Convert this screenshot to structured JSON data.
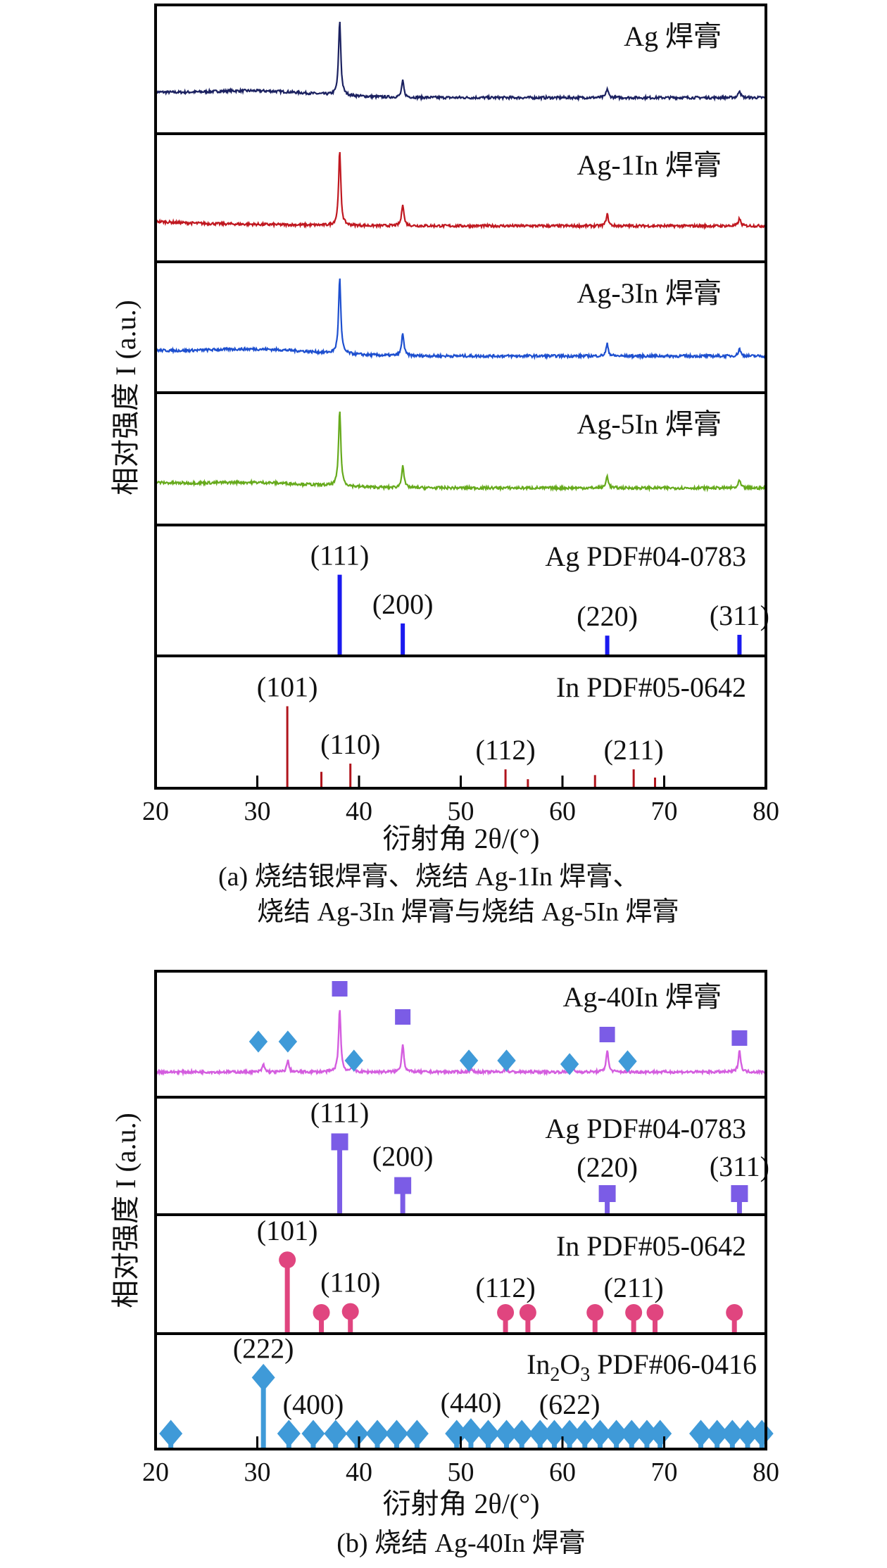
{
  "chart_data": [
    {
      "type": "line",
      "title": "(a) 烧结银焊膏、烧结 Ag-1In 焊膏、",
      "title_line2": "烧结 Ag-3In 焊膏与烧结 Ag-5In 焊膏",
      "xlabel": "衍射角 2θ/(°)",
      "ylabel": "相对强度 I (a.u.)",
      "xlim": [
        20,
        80
      ],
      "xticks": [
        "20",
        "30",
        "40",
        "50",
        "60",
        "70",
        "80"
      ],
      "series": [
        {
          "name": "Ag 焊膏",
          "color": "#1b2160",
          "peaks": [
            [
              38.1,
              100
            ],
            [
              44.3,
              22
            ],
            [
              64.4,
              12
            ],
            [
              77.4,
              10
            ]
          ],
          "hump": 8
        },
        {
          "name": "Ag-1In 焊膏",
          "color": "#c01820",
          "peaks": [
            [
              38.1,
              100
            ],
            [
              44.3,
              30
            ],
            [
              64.4,
              16
            ],
            [
              77.4,
              10
            ]
          ],
          "hump": 1
        },
        {
          "name": "Ag-3In 焊膏",
          "color": "#1d4fcf",
          "peaks": [
            [
              38.1,
              100
            ],
            [
              44.3,
              30
            ],
            [
              64.4,
              16
            ],
            [
              77.4,
              10
            ]
          ],
          "hump": 8
        },
        {
          "name": "Ag-5In 焊膏",
          "color": "#66aa1c",
          "peaks": [
            [
              38.1,
              100
            ],
            [
              44.3,
              30
            ],
            [
              64.4,
              16
            ],
            [
              77.4,
              10
            ]
          ],
          "hump": 6
        }
      ],
      "references": [
        {
          "name": "Ag PDF#04-0783",
          "color": "#1a1aef",
          "sticks": [
            [
              38.1,
              100
            ],
            [
              44.3,
              40
            ],
            [
              64.4,
              25
            ],
            [
              77.4,
              26
            ]
          ],
          "labels": [
            {
              "hkl": "(111)",
              "x": 38.1
            },
            {
              "hkl": "(200)",
              "x": 44.3
            },
            {
              "hkl": "(220)",
              "x": 64.4
            },
            {
              "hkl": "(311)",
              "x": 77.4
            }
          ]
        },
        {
          "name": "In PDF#05-0642",
          "color": "#b0141c",
          "sticks": [
            [
              32.95,
              100
            ],
            [
              36.3,
              20
            ],
            [
              39.15,
              30
            ],
            [
              54.4,
              23
            ],
            [
              56.6,
              11
            ],
            [
              63.2,
              16
            ],
            [
              67.0,
              23
            ],
            [
              69.1,
              13
            ],
            [
              76.9,
              1
            ]
          ],
          "labels": [
            {
              "hkl": "(101)",
              "x": 32.95
            },
            {
              "hkl": "(110)",
              "x": 39.15
            },
            {
              "hkl": "(112)",
              "x": 54.4
            },
            {
              "hkl": "(211)",
              "x": 67.0
            }
          ]
        }
      ]
    },
    {
      "type": "line",
      "title": "(b) 烧结 Ag-40In 焊膏",
      "xlabel": "衍射角 2θ/(°)",
      "ylabel": "相对强度 I (a.u.)",
      "xlim": [
        20,
        80
      ],
      "xticks": [
        "20",
        "30",
        "40",
        "50",
        "60",
        "70",
        "80"
      ],
      "series": [
        {
          "name": "Ag-40In 焊膏",
          "color": "#d45ddf",
          "peaks": [
            [
              30.6,
              12
            ],
            [
              33.0,
              18
            ],
            [
              38.1,
              100
            ],
            [
              39.3,
              8
            ],
            [
              44.3,
              45
            ],
            [
              51.0,
              5
            ],
            [
              54.4,
              5
            ],
            [
              61.0,
              5
            ],
            [
              64.4,
              35
            ],
            [
              77.4,
              35
            ]
          ],
          "markers_Ag": [
            38.1,
            44.3,
            64.4,
            77.4
          ],
          "markers_In2O3": [
            30.1,
            33.0,
            39.5,
            50.8,
            54.5,
            60.7,
            66.4
          ]
        }
      ],
      "references": [
        {
          "name": "Ag PDF#04-0783",
          "color": "#7b5ce6",
          "marker": "square",
          "sticks": [
            [
              38.1,
              100
            ],
            [
              44.3,
              40
            ],
            [
              64.4,
              25
            ],
            [
              77.4,
              26
            ]
          ],
          "labels": [
            {
              "hkl": "(111)",
              "x": 38.1
            },
            {
              "hkl": "(200)",
              "x": 44.3
            },
            {
              "hkl": "(220)",
              "x": 64.4
            },
            {
              "hkl": "(311)",
              "x": 77.4
            }
          ]
        },
        {
          "name": "In PDF#05-0642",
          "color": "#e0457f",
          "marker": "circle",
          "sticks": [
            [
              32.95,
              100
            ],
            [
              36.3,
              20
            ],
            [
              39.15,
              30
            ],
            [
              54.4,
              23
            ],
            [
              56.6,
              11
            ],
            [
              63.2,
              16
            ],
            [
              67.0,
              23
            ],
            [
              69.1,
              13
            ],
            [
              76.9,
              1
            ]
          ],
          "labels": [
            {
              "hkl": "(101)",
              "x": 32.95
            },
            {
              "hkl": "(110)",
              "x": 39.15
            },
            {
              "hkl": "(112)",
              "x": 54.4
            },
            {
              "hkl": "(211)",
              "x": 67.0
            }
          ]
        },
        {
          "name_main": "In",
          "name_sub1": "2",
          "name_mid": "O",
          "name_sub2": "3",
          "name_rest": " PDF#06-0416",
          "color": "#3f9ad8",
          "marker": "diamond",
          "sticks": [
            [
              21.5,
              14
            ],
            [
              30.6,
              100
            ],
            [
              33.1,
              7
            ],
            [
              35.5,
              20
            ],
            [
              37.7,
              9
            ],
            [
              39.8,
              6
            ],
            [
              41.8,
              8
            ],
            [
              43.7,
              6
            ],
            [
              45.7,
              11
            ],
            [
              49.6,
              7
            ],
            [
              51.0,
              24
            ],
            [
              52.7,
              5
            ],
            [
              54.5,
              5
            ],
            [
              56.0,
              5
            ],
            [
              57.8,
              5
            ],
            [
              59.2,
              5
            ],
            [
              60.7,
              18
            ],
            [
              62.2,
              5
            ],
            [
              63.7,
              6
            ],
            [
              65.3,
              5
            ],
            [
              66.8,
              5
            ],
            [
              68.3,
              5
            ],
            [
              69.6,
              5
            ],
            [
              73.6,
              5
            ],
            [
              75.2,
              5
            ],
            [
              76.7,
              5
            ],
            [
              78.2,
              5
            ],
            [
              79.6,
              5
            ]
          ],
          "labels": [
            {
              "hkl": "(222)",
              "x": 30.6
            },
            {
              "hkl": "(400)",
              "x": 35.5
            },
            {
              "hkl": "(440)",
              "x": 51.0
            },
            {
              "hkl": "(622)",
              "x": 60.7
            }
          ]
        }
      ]
    }
  ]
}
